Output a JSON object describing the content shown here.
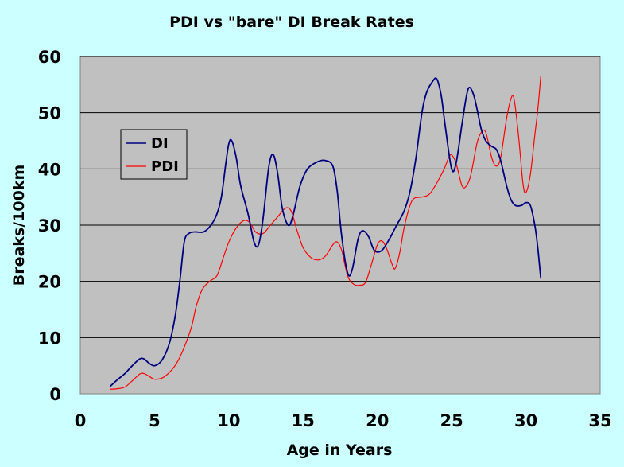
{
  "chart_data": {
    "type": "line",
    "title": "PDI vs \"bare\" DI Break Rates",
    "xlabel": "Age in Years",
    "ylabel": "Breaks/100km",
    "xlim": [
      0,
      35
    ],
    "ylim": [
      0,
      60
    ],
    "x_ticks": [
      0,
      5,
      10,
      15,
      20,
      25,
      30,
      35
    ],
    "y_ticks": [
      0,
      10,
      20,
      30,
      40,
      50,
      60
    ],
    "grid": "horizontal",
    "legend_position": "left",
    "colors": {
      "plot_bg": "#C0C0C0",
      "page_bg": "#CCFFFF",
      "grid": "#000000",
      "DI": "#000080",
      "PDI": "#FF0000"
    },
    "series": [
      {
        "name": "DI",
        "color": "#000080",
        "points": [
          [
            2,
            1.3
          ],
          [
            2.5,
            2.5
          ],
          [
            3,
            3.6
          ],
          [
            3.5,
            5.0
          ],
          [
            4,
            6.2
          ],
          [
            4.3,
            6.2
          ],
          [
            4.6,
            5.5
          ],
          [
            5,
            5.0
          ],
          [
            5.5,
            6.0
          ],
          [
            6,
            9.0
          ],
          [
            6.4,
            14.0
          ],
          [
            6.7,
            20.0
          ],
          [
            7,
            27.0
          ],
          [
            7.3,
            28.5
          ],
          [
            7.7,
            28.8
          ],
          [
            8.3,
            28.8
          ],
          [
            8.8,
            30.0
          ],
          [
            9.2,
            32.0
          ],
          [
            9.5,
            35.0
          ],
          [
            9.8,
            41.0
          ],
          [
            10,
            44.5
          ],
          [
            10.2,
            45.0
          ],
          [
            10.5,
            42.0
          ],
          [
            10.8,
            37.0
          ],
          [
            11.3,
            32.0
          ],
          [
            11.7,
            27.0
          ],
          [
            12,
            26.5
          ],
          [
            12.3,
            31.0
          ],
          [
            12.7,
            40.5
          ],
          [
            13,
            42.5
          ],
          [
            13.3,
            39.0
          ],
          [
            13.6,
            33.0
          ],
          [
            14,
            30.0
          ],
          [
            14.3,
            31.5
          ],
          [
            14.8,
            37.0
          ],
          [
            15.3,
            40.0
          ],
          [
            16,
            41.3
          ],
          [
            16.5,
            41.5
          ],
          [
            17,
            40.5
          ],
          [
            17.3,
            36.0
          ],
          [
            17.6,
            28.0
          ],
          [
            18,
            21.5
          ],
          [
            18.3,
            22.0
          ],
          [
            18.7,
            27.5
          ],
          [
            19,
            29.0
          ],
          [
            19.4,
            28.0
          ],
          [
            19.8,
            25.5
          ],
          [
            20.3,
            25.5
          ],
          [
            20.8,
            27.5
          ],
          [
            21.3,
            30.0
          ],
          [
            21.8,
            32.5
          ],
          [
            22.2,
            36.0
          ],
          [
            22.6,
            42.0
          ],
          [
            23,
            50.0
          ],
          [
            23.3,
            53.5
          ],
          [
            23.7,
            55.5
          ],
          [
            24,
            56.0
          ],
          [
            24.3,
            53.0
          ],
          [
            24.6,
            47.0
          ],
          [
            25,
            40.0
          ],
          [
            25.3,
            41.0
          ],
          [
            25.7,
            48.0
          ],
          [
            26,
            53.0
          ],
          [
            26.2,
            54.5
          ],
          [
            26.5,
            53.0
          ],
          [
            26.8,
            49.5
          ],
          [
            27,
            47.0
          ],
          [
            27.3,
            45.0
          ],
          [
            27.7,
            44.0
          ],
          [
            28,
            43.5
          ],
          [
            28.3,
            41.5
          ],
          [
            28.7,
            37.0
          ],
          [
            29,
            34.5
          ],
          [
            29.3,
            33.5
          ],
          [
            29.7,
            33.5
          ],
          [
            30,
            34.0
          ],
          [
            30.3,
            33.5
          ],
          [
            30.6,
            30.0
          ],
          [
            30.8,
            26.0
          ],
          [
            31,
            20.5
          ]
        ]
      },
      {
        "name": "PDI",
        "color": "#FF0000",
        "points": [
          [
            2,
            0.8
          ],
          [
            2.5,
            0.9
          ],
          [
            3,
            1.2
          ],
          [
            3.5,
            2.3
          ],
          [
            4,
            3.5
          ],
          [
            4.3,
            3.6
          ],
          [
            4.7,
            3.0
          ],
          [
            5,
            2.6
          ],
          [
            5.5,
            2.8
          ],
          [
            6,
            3.8
          ],
          [
            6.5,
            5.5
          ],
          [
            7,
            8.3
          ],
          [
            7.5,
            12.0
          ],
          [
            7.8,
            15.5
          ],
          [
            8.2,
            18.5
          ],
          [
            8.7,
            20.0
          ],
          [
            9.2,
            21.0
          ],
          [
            9.6,
            24.0
          ],
          [
            10,
            27.0
          ],
          [
            10.5,
            29.5
          ],
          [
            11,
            30.8
          ],
          [
            11.4,
            30.5
          ],
          [
            11.8,
            28.8
          ],
          [
            12.3,
            28.5
          ],
          [
            12.8,
            30.0
          ],
          [
            13.3,
            31.5
          ],
          [
            13.8,
            33.0
          ],
          [
            14.2,
            32.5
          ],
          [
            14.6,
            29.0
          ],
          [
            15,
            26.0
          ],
          [
            15.5,
            24.3
          ],
          [
            16,
            23.8
          ],
          [
            16.5,
            24.5
          ],
          [
            17,
            26.5
          ],
          [
            17.3,
            27.0
          ],
          [
            17.6,
            25.5
          ],
          [
            18,
            21.0
          ],
          [
            18.4,
            19.5
          ],
          [
            18.8,
            19.3
          ],
          [
            19.2,
            19.8
          ],
          [
            19.6,
            23.0
          ],
          [
            20,
            26.5
          ],
          [
            20.3,
            27.2
          ],
          [
            20.6,
            26.0
          ],
          [
            21,
            23.0
          ],
          [
            21.2,
            22.3
          ],
          [
            21.5,
            25.0
          ],
          [
            21.8,
            29.5
          ],
          [
            22.2,
            33.5
          ],
          [
            22.5,
            34.8
          ],
          [
            23,
            35.0
          ],
          [
            23.5,
            35.5
          ],
          [
            24,
            37.5
          ],
          [
            24.5,
            40.0
          ],
          [
            24.8,
            42.0
          ],
          [
            25,
            42.5
          ],
          [
            25.3,
            41.0
          ],
          [
            25.7,
            37.0
          ],
          [
            26,
            37.0
          ],
          [
            26.3,
            39.0
          ],
          [
            26.7,
            44.5
          ],
          [
            27,
            46.5
          ],
          [
            27.3,
            46.5
          ],
          [
            27.7,
            42.0
          ],
          [
            28,
            40.5
          ],
          [
            28.3,
            42.0
          ],
          [
            28.7,
            49.0
          ],
          [
            29,
            52.5
          ],
          [
            29.2,
            52.5
          ],
          [
            29.5,
            46.0
          ],
          [
            29.8,
            37.5
          ],
          [
            30,
            35.8
          ],
          [
            30.3,
            39.0
          ],
          [
            30.6,
            46.0
          ],
          [
            30.8,
            50.5
          ],
          [
            31,
            56.5
          ]
        ]
      }
    ]
  }
}
